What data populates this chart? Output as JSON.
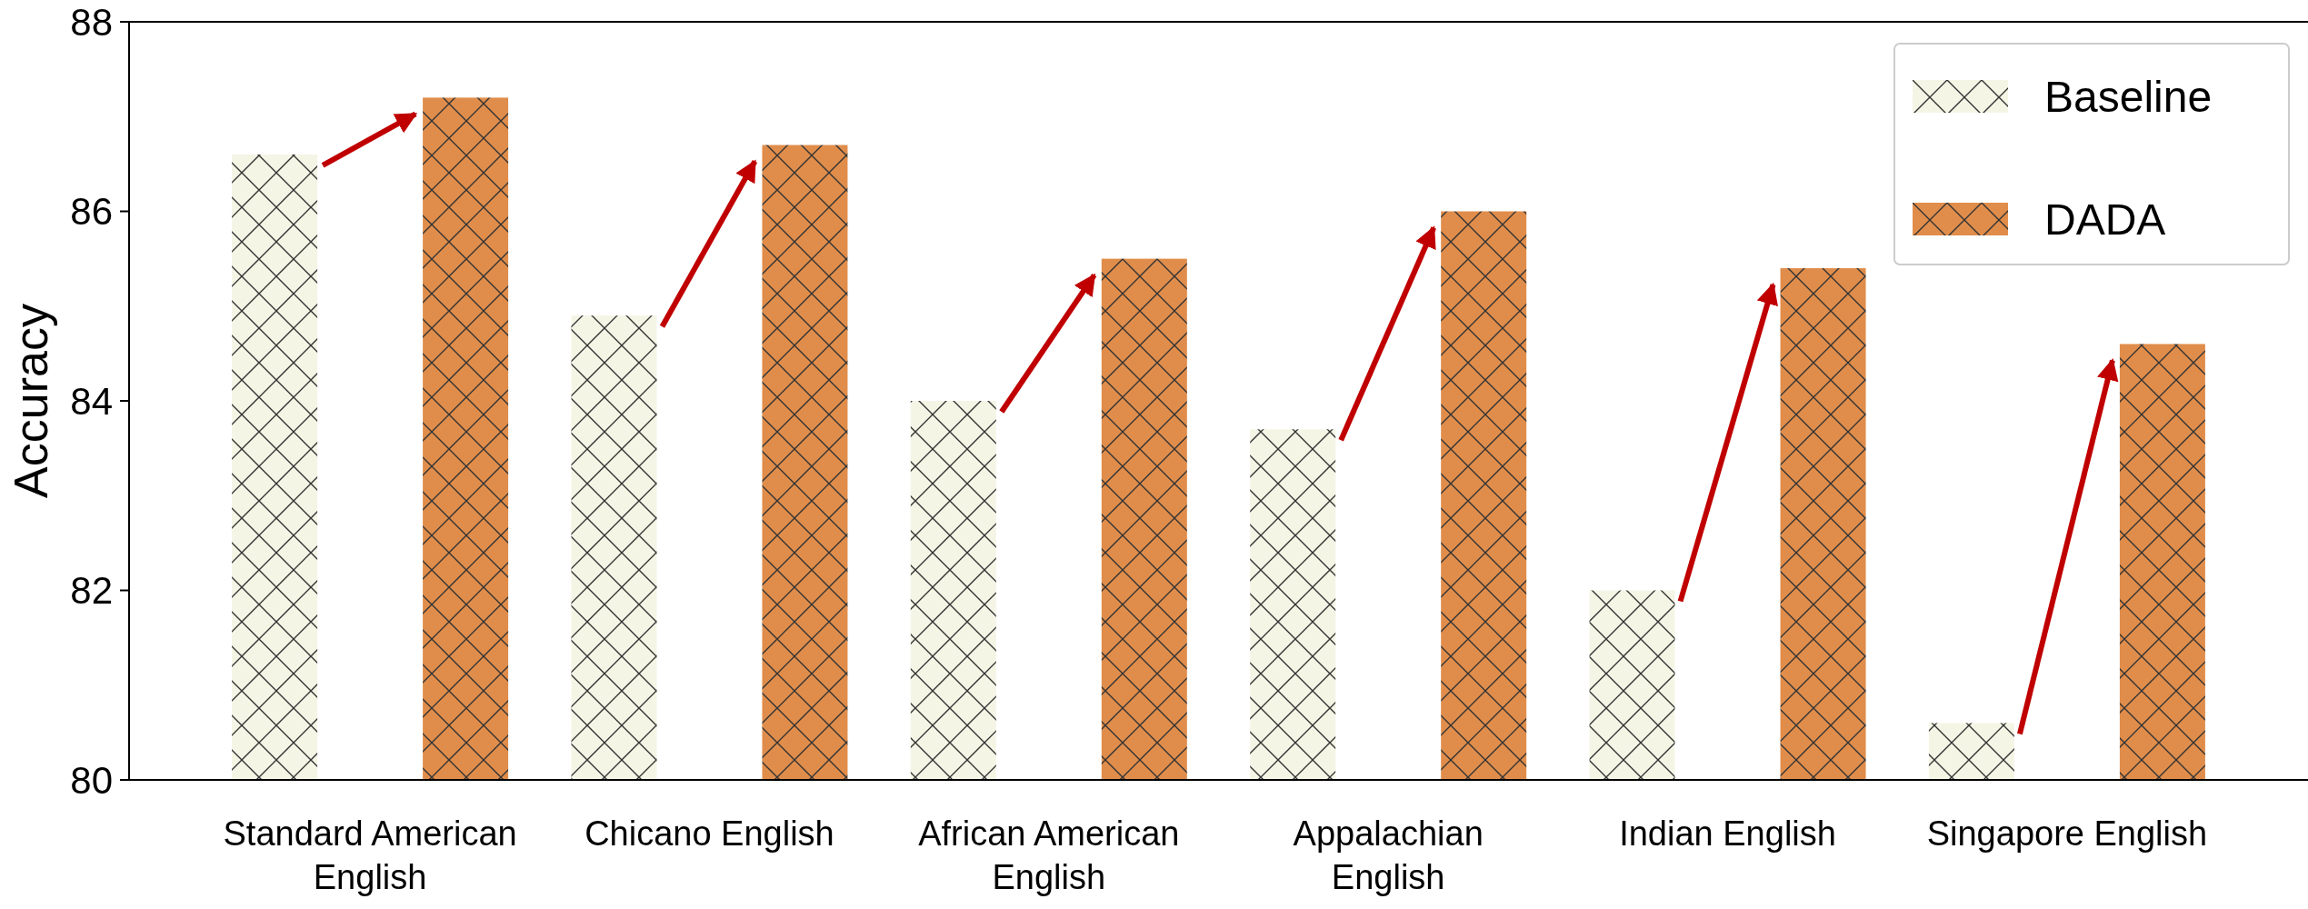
{
  "chart_data": {
    "type": "bar",
    "ylabel": "Accuracy",
    "categories": [
      "Standard American English",
      "Chicano English",
      "African American English",
      "Appalachian English",
      "Indian English",
      "Singapore English"
    ],
    "series": [
      {
        "name": "Baseline",
        "color": "#f5f5e6",
        "values": [
          86.6,
          84.9,
          84.0,
          83.7,
          82.0,
          80.6
        ]
      },
      {
        "name": "DADA",
        "color": "#e08d4b",
        "values": [
          87.2,
          86.7,
          85.5,
          86.0,
          85.4,
          84.6
        ]
      }
    ],
    "ylim": [
      80,
      88
    ],
    "yticks": [
      80,
      82,
      84,
      86,
      88
    ],
    "legend": "top right"
  }
}
